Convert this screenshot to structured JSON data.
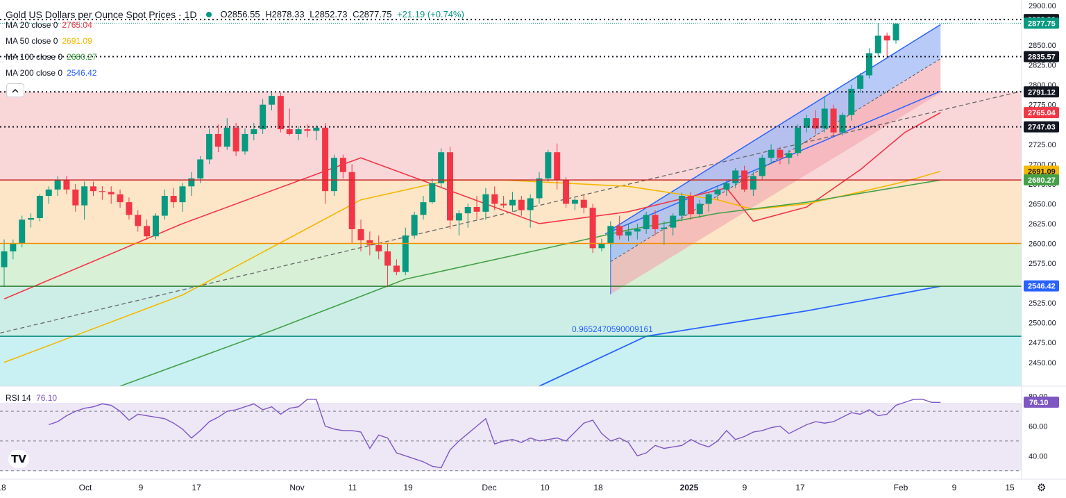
{
  "header": {
    "title": "Gold US Dollars per Ounce Spot Prices · 1D",
    "open": "O2856.55",
    "high": "H2878.33",
    "low": "L2852.73",
    "close": "C2877.75",
    "change": "+21.19 (+0.74%)"
  },
  "indicators": [
    {
      "label": "MA 20 close 0",
      "value": "2765.04",
      "color": "#f23645"
    },
    {
      "label": "MA 50 close 0",
      "value": "2691.09",
      "color": "#f5b800"
    },
    {
      "label": "MA 100 close 0",
      "value": "2680.27",
      "color": "#43a047"
    },
    {
      "label": "MA 200 close 0",
      "value": "2546.42",
      "color": "#2962ff"
    }
  ],
  "rsi": {
    "label": "RSI 14",
    "value": "76.10"
  },
  "annotation": "0.9652470590009161",
  "collapse_icon": "chevron-up-icon",
  "logo": "TV",
  "settings_icon": "gear-icon",
  "colors": {
    "up": "#089981",
    "down": "#f23645",
    "channel": "#2962ff",
    "rsi": "#7e57c2"
  },
  "chart_data": {
    "type": "candlestick",
    "title": "Gold US Dollars per Ounce Spot Prices · 1D",
    "ylim": [
      2420,
      2900
    ],
    "y_ticks": [
      2450,
      2475,
      2500,
      2525,
      2550,
      2575,
      2600,
      2625,
      2650,
      2675,
      2700,
      2725,
      2750,
      2775,
      2800,
      2825,
      2850,
      2875,
      2900
    ],
    "x_ticks": [
      "18",
      "Oct",
      "9",
      "17",
      "Nov",
      "11",
      "19",
      "Dec",
      "10",
      "18",
      "2025",
      "9",
      "17",
      "Feb",
      "9",
      "15"
    ],
    "candles": [
      [
        2570,
        2605,
        2545,
        2590
      ],
      [
        2590,
        2605,
        2580,
        2600
      ],
      [
        2600,
        2635,
        2595,
        2630
      ],
      [
        2630,
        2638,
        2620,
        2632
      ],
      [
        2632,
        2662,
        2628,
        2660
      ],
      [
        2660,
        2672,
        2650,
        2668
      ],
      [
        2668,
        2685,
        2660,
        2680
      ],
      [
        2680,
        2685,
        2662,
        2668
      ],
      [
        2668,
        2675,
        2640,
        2648
      ],
      [
        2648,
        2678,
        2630,
        2672
      ],
      [
        2672,
        2678,
        2660,
        2666
      ],
      [
        2666,
        2672,
        2655,
        2665
      ],
      [
        2665,
        2672,
        2650,
        2662
      ],
      [
        2662,
        2668,
        2645,
        2652
      ],
      [
        2652,
        2658,
        2630,
        2636
      ],
      [
        2636,
        2642,
        2615,
        2622
      ],
      [
        2622,
        2630,
        2605,
        2609
      ],
      [
        2609,
        2638,
        2605,
        2635
      ],
      [
        2635,
        2668,
        2630,
        2660
      ],
      [
        2660,
        2670,
        2645,
        2652
      ],
      [
        2652,
        2676,
        2640,
        2672
      ],
      [
        2672,
        2690,
        2660,
        2682
      ],
      [
        2682,
        2710,
        2676,
        2706
      ],
      [
        2706,
        2745,
        2700,
        2738
      ],
      [
        2738,
        2750,
        2715,
        2722
      ],
      [
        2722,
        2758,
        2718,
        2746
      ],
      [
        2746,
        2752,
        2710,
        2716
      ],
      [
        2716,
        2745,
        2712,
        2738
      ],
      [
        2738,
        2752,
        2730,
        2744
      ],
      [
        2744,
        2782,
        2738,
        2775
      ],
      [
        2775,
        2790,
        2768,
        2786
      ],
      [
        2786,
        2790,
        2740,
        2744
      ],
      [
        2744,
        2770,
        2736,
        2738
      ],
      [
        2738,
        2748,
        2730,
        2744
      ],
      [
        2744,
        2750,
        2734,
        2742
      ],
      [
        2742,
        2749,
        2730,
        2746
      ],
      [
        2746,
        2752,
        2650,
        2666
      ],
      [
        2666,
        2712,
        2660,
        2708
      ],
      [
        2708,
        2712,
        2682,
        2690
      ],
      [
        2690,
        2700,
        2600,
        2618
      ],
      [
        2618,
        2630,
        2590,
        2604
      ],
      [
        2604,
        2615,
        2585,
        2598
      ],
      [
        2598,
        2610,
        2580,
        2590
      ],
      [
        2590,
        2600,
        2545,
        2572
      ],
      [
        2572,
        2580,
        2560,
        2564
      ],
      [
        2564,
        2620,
        2560,
        2610
      ],
      [
        2610,
        2640,
        2606,
        2636
      ],
      [
        2636,
        2660,
        2630,
        2652
      ],
      [
        2652,
        2682,
        2650,
        2676
      ],
      [
        2676,
        2720,
        2670,
        2715
      ],
      [
        2715,
        2722,
        2618,
        2629
      ],
      [
        2629,
        2642,
        2610,
        2638
      ],
      [
        2638,
        2650,
        2620,
        2646
      ],
      [
        2646,
        2660,
        2630,
        2640
      ],
      [
        2640,
        2670,
        2630,
        2662
      ],
      [
        2662,
        2672,
        2642,
        2650
      ],
      [
        2650,
        2660,
        2645,
        2648
      ],
      [
        2648,
        2665,
        2640,
        2655
      ],
      [
        2655,
        2660,
        2635,
        2642
      ],
      [
        2642,
        2662,
        2620,
        2657
      ],
      [
        2657,
        2690,
        2650,
        2682
      ],
      [
        2682,
        2718,
        2678,
        2715
      ],
      [
        2715,
        2726,
        2668,
        2680
      ],
      [
        2680,
        2684,
        2645,
        2650
      ],
      [
        2650,
        2658,
        2642,
        2655
      ],
      [
        2655,
        2662,
        2638,
        2645
      ],
      [
        2645,
        2650,
        2588,
        2594
      ],
      [
        2594,
        2606,
        2590,
        2600
      ],
      [
        2600,
        2628,
        2595,
        2622
      ],
      [
        2622,
        2635,
        2605,
        2610
      ],
      [
        2610,
        2625,
        2603,
        2615
      ],
      [
        2615,
        2625,
        2605,
        2618
      ],
      [
        2618,
        2640,
        2612,
        2636
      ],
      [
        2636,
        2642,
        2610,
        2618
      ],
      [
        2618,
        2628,
        2598,
        2620
      ],
      [
        2620,
        2638,
        2610,
        2635
      ],
      [
        2635,
        2664,
        2628,
        2660
      ],
      [
        2660,
        2665,
        2630,
        2637
      ],
      [
        2637,
        2655,
        2632,
        2650
      ],
      [
        2650,
        2665,
        2640,
        2662
      ],
      [
        2662,
        2672,
        2655,
        2668
      ],
      [
        2668,
        2680,
        2660,
        2676
      ],
      [
        2676,
        2695,
        2670,
        2692
      ],
      [
        2692,
        2698,
        2665,
        2668
      ],
      [
        2668,
        2690,
        2660,
        2685
      ],
      [
        2685,
        2712,
        2680,
        2708
      ],
      [
        2708,
        2725,
        2700,
        2718
      ],
      [
        2718,
        2722,
        2700,
        2708
      ],
      [
        2708,
        2718,
        2700,
        2714
      ],
      [
        2714,
        2750,
        2710,
        2746
      ],
      [
        2746,
        2762,
        2740,
        2758
      ],
      [
        2758,
        2768,
        2738,
        2745
      ],
      [
        2745,
        2785,
        2740,
        2770
      ],
      [
        2770,
        2775,
        2735,
        2740
      ],
      [
        2740,
        2765,
        2736,
        2762
      ],
      [
        2762,
        2800,
        2755,
        2795
      ],
      [
        2795,
        2815,
        2790,
        2812
      ],
      [
        2812,
        2846,
        2808,
        2840
      ],
      [
        2840,
        2878,
        2835,
        2862
      ],
      [
        2862,
        2866,
        2834,
        2856
      ],
      [
        2856,
        2878,
        2852,
        2877
      ]
    ],
    "series": [
      {
        "name": "MA 20 close 0",
        "color": "#f23645",
        "x": [
          0,
          20,
          40,
          60,
          70,
          81,
          84,
          90,
          96,
          101,
          105
        ],
        "values": [
          2530,
          2625,
          2708,
          2625,
          2640,
          2670,
          2628,
          2646,
          2693,
          2740,
          2765
        ]
      },
      {
        "name": "MA 50 close 0",
        "color": "#f5b800",
        "x": [
          0,
          20,
          40,
          50,
          56,
          70,
          80,
          84,
          90,
          96,
          101,
          105
        ],
        "values": [
          2450,
          2535,
          2655,
          2680,
          2680,
          2672,
          2655,
          2643,
          2650,
          2665,
          2678,
          2691
        ]
      },
      {
        "name": "MA 100 close 0",
        "color": "#43a047",
        "x": [
          13,
          30,
          45,
          60,
          70,
          80,
          90,
          105
        ],
        "values": [
          2420,
          2490,
          2555,
          2592,
          2617,
          2638,
          2652,
          2680
        ]
      }
    ],
    "price_labels": [
      "2882.36",
      "2877.75",
      "2835.57",
      "2791.12",
      "2765.04",
      "2747.03",
      "2691.09",
      "2680.27",
      "2546.42"
    ],
    "rsi_ylim": [
      28,
      85
    ],
    "rsi_ticks": [
      80,
      60,
      40
    ],
    "rsi_values": [
      61,
      63,
      67,
      70,
      72,
      73,
      75,
      74,
      70,
      64,
      68,
      67,
      66,
      65,
      62,
      58,
      52,
      57,
      63,
      66,
      70,
      71,
      73,
      75,
      71,
      73,
      68,
      72,
      73,
      78,
      78,
      60,
      58,
      57,
      57,
      56,
      45,
      54,
      52,
      42,
      40,
      38,
      36,
      33,
      32,
      44,
      50,
      55,
      60,
      65,
      48,
      50,
      51,
      49,
      52,
      50,
      51,
      52,
      50,
      56,
      62,
      64,
      55,
      50,
      52,
      49,
      40,
      42,
      47,
      45,
      46,
      47,
      51,
      48,
      46,
      50,
      57,
      51,
      53,
      56,
      57,
      59,
      60,
      55,
      58,
      61,
      63,
      62,
      63,
      66,
      69,
      68,
      71,
      67,
      68,
      74,
      76,
      78,
      78,
      76,
      76
    ],
    "rsi_x_offset": 5
  }
}
